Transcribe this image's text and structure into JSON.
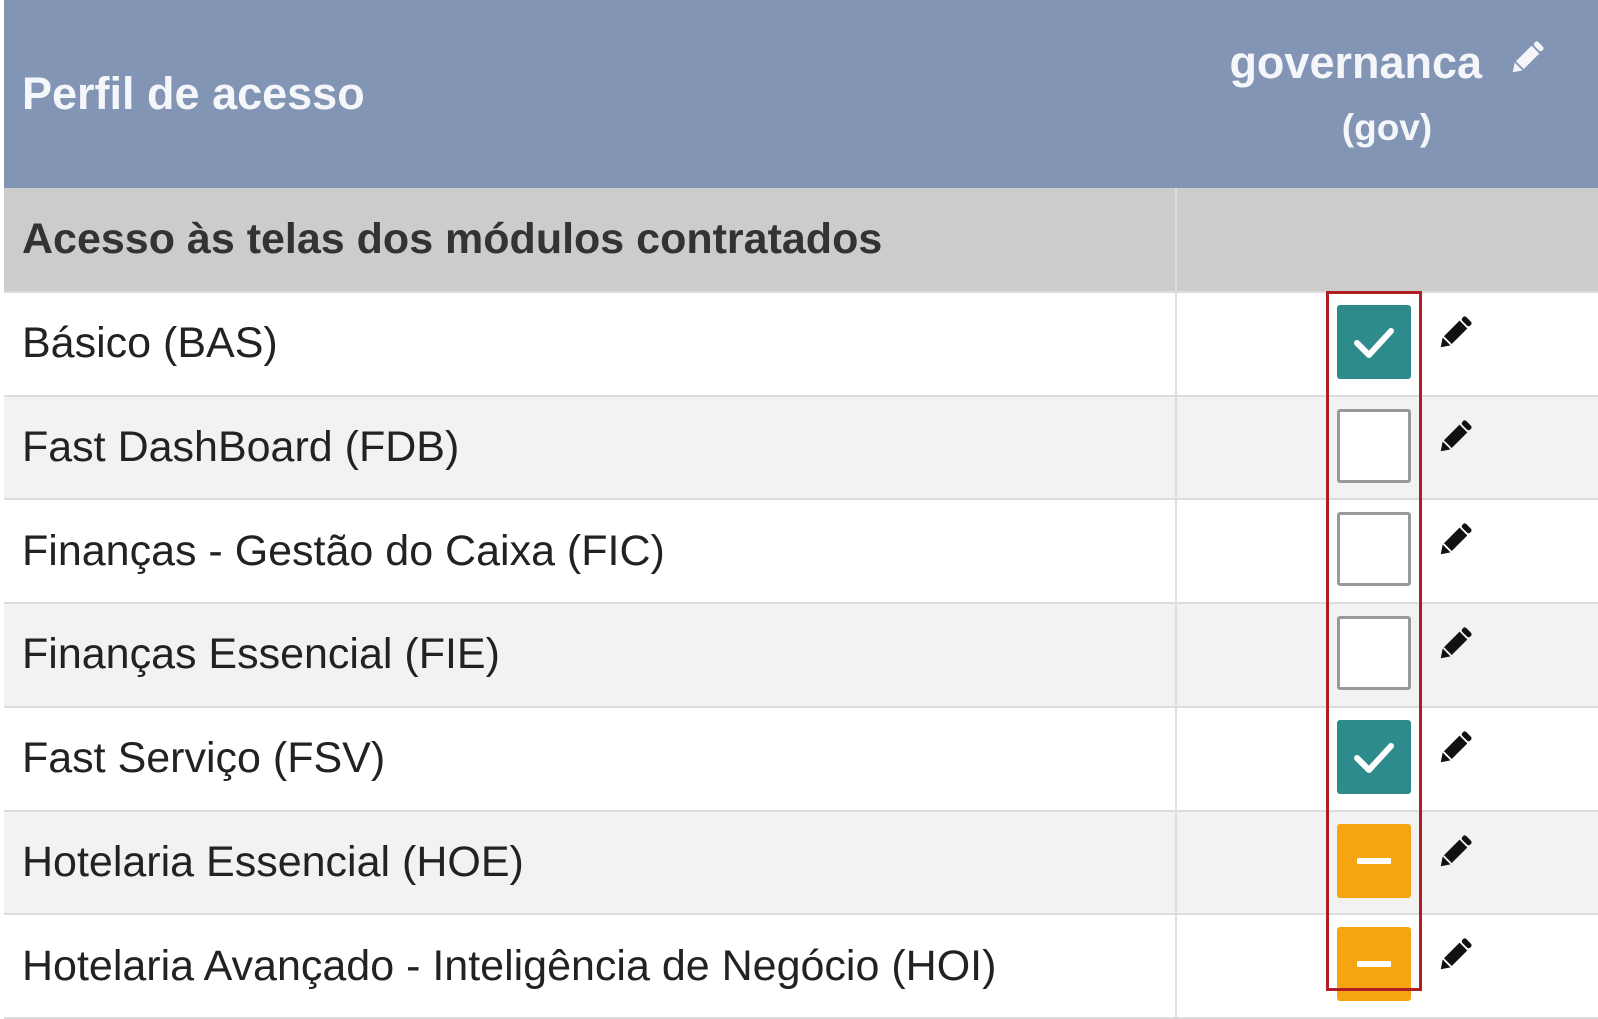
{
  "header": {
    "column_label": "Perfil de acesso",
    "profile_name": "governanca",
    "profile_code": "(gov)"
  },
  "section": {
    "title": "Acesso às telas dos módulos contratados"
  },
  "modules": [
    {
      "label": "Básico (BAS)",
      "state": "checked"
    },
    {
      "label": "Fast DashBoard (FDB)",
      "state": "unchecked"
    },
    {
      "label": "Finanças - Gestão do Caixa (FIC)",
      "state": "unchecked"
    },
    {
      "label": "Finanças Essencial (FIE)",
      "state": "unchecked"
    },
    {
      "label": "Fast Serviço (FSV)",
      "state": "checked"
    },
    {
      "label": "Hotelaria Essencial (HOE)",
      "state": "partial"
    },
    {
      "label": "Hotelaria Avançado - Inteligência de Negócio (HOI)",
      "state": "partial"
    }
  ],
  "colors": {
    "header_bg": "#8295b5",
    "section_bg": "#cccccc",
    "checked": "#2e8b8b",
    "partial": "#f5a511",
    "highlight_border": "#b01e24"
  },
  "icons": {
    "profile_edit": "pencil-icon",
    "row_edit": "pencil-icon",
    "checked_mark": "check-icon",
    "partial_mark": "minus-icon"
  }
}
